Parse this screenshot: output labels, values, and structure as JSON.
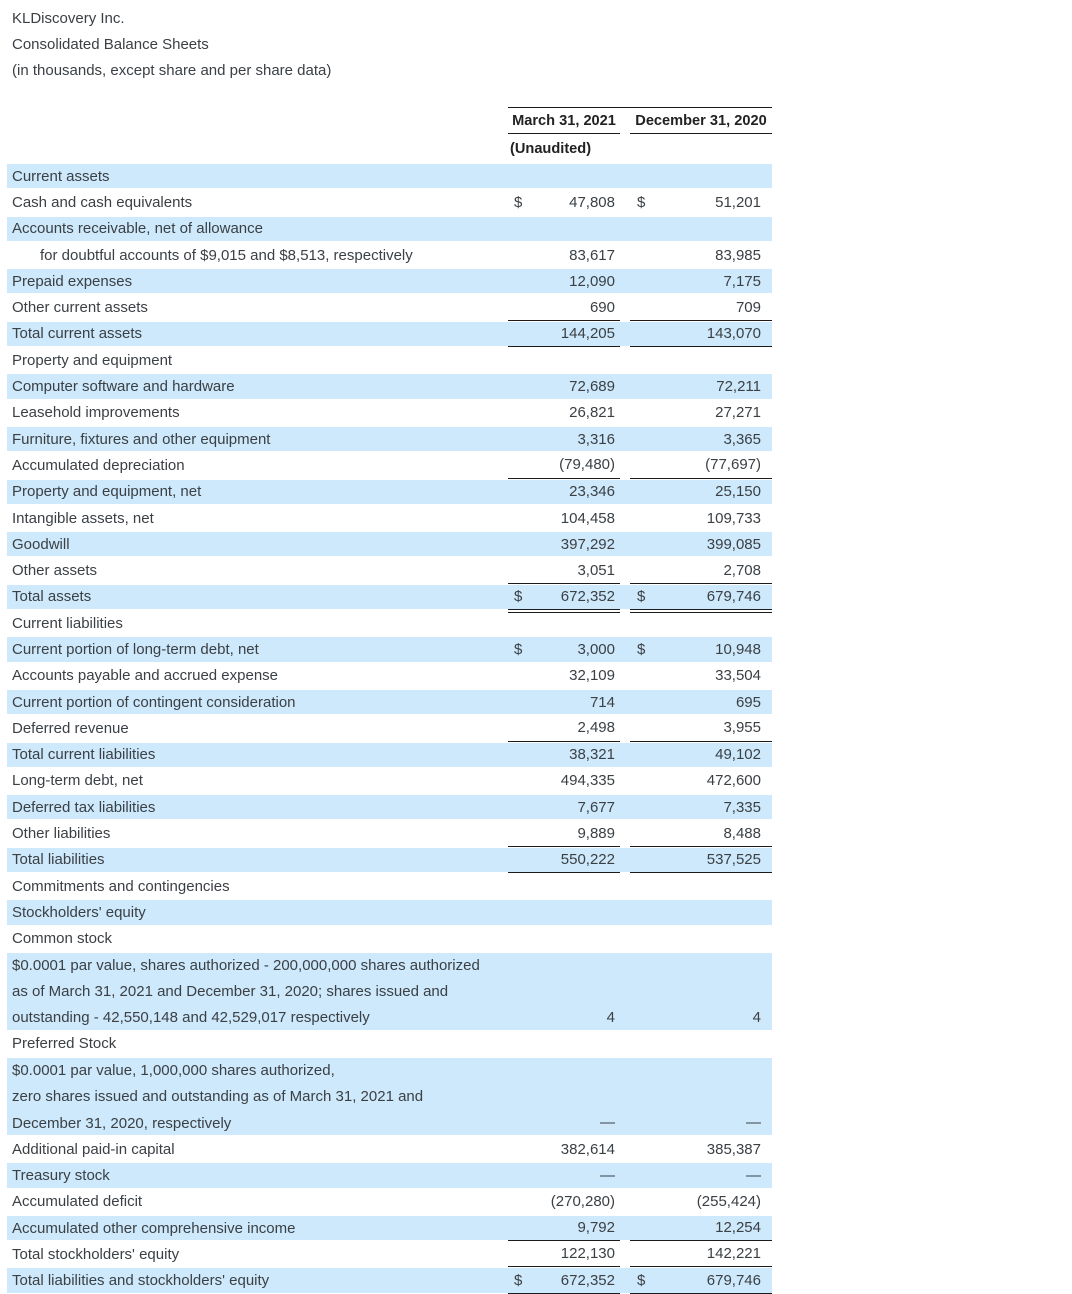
{
  "document": {
    "title": "KLDiscovery Inc.",
    "subtitle": "Consolidated Balance Sheets",
    "note": "(in thousands, except share and per share data)"
  },
  "colors": {
    "row_highlight": "#cde9fb",
    "text": "#3b4045",
    "rule": "#1b1b1b"
  },
  "table": {
    "currency_symbol": "$",
    "columns": [
      {
        "label": "March 31, 2021",
        "sublabel": "(Unaudited)"
      },
      {
        "label": "December 31, 2020",
        "sublabel": ""
      }
    ],
    "rows": [
      {
        "label": "Current assets",
        "shaded": true,
        "values": [
          "",
          ""
        ]
      },
      {
        "label": "Cash and cash equivalents",
        "dollar": true,
        "values": [
          "47,808",
          "51,201"
        ]
      },
      {
        "label": "Accounts receivable, net of allowance",
        "shaded": true,
        "values": [
          "",
          ""
        ]
      },
      {
        "label": "for doubtful accounts of $9,015 and $8,513, respectively",
        "indent": true,
        "values": [
          "83,617",
          "83,985"
        ]
      },
      {
        "label": "Prepaid expenses",
        "shaded": true,
        "values": [
          "12,090",
          "7,175"
        ]
      },
      {
        "label": "Other current assets",
        "values": [
          "690",
          "709"
        ],
        "rule": "single"
      },
      {
        "label": "Total current assets",
        "shaded": true,
        "values": [
          "144,205",
          "143,070"
        ],
        "rule": "single"
      },
      {
        "label": "Property and equipment",
        "values": [
          "",
          ""
        ]
      },
      {
        "label": "Computer software and hardware",
        "shaded": true,
        "values": [
          "72,689",
          "72,211"
        ]
      },
      {
        "label": "Leasehold improvements",
        "values": [
          "26,821",
          "27,271"
        ]
      },
      {
        "label": "Furniture, fixtures and other equipment",
        "shaded": true,
        "values": [
          "3,316",
          "3,365"
        ]
      },
      {
        "label": "Accumulated depreciation",
        "values": [
          "(79,480)",
          "(77,697)"
        ],
        "rule": "single"
      },
      {
        "label": "Property and equipment, net",
        "shaded": true,
        "values": [
          "23,346",
          "25,150"
        ]
      },
      {
        "label": "Intangible assets, net",
        "values": [
          "104,458",
          "109,733"
        ]
      },
      {
        "label": "Goodwill",
        "shaded": true,
        "values": [
          "397,292",
          "399,085"
        ]
      },
      {
        "label": "Other assets",
        "values": [
          "3,051",
          "2,708"
        ],
        "rule": "single"
      },
      {
        "label": "Total assets",
        "shaded": true,
        "dollar": true,
        "values": [
          "672,352",
          "679,746"
        ],
        "rule": "double"
      },
      {
        "label": "Current liabilities",
        "values": [
          "",
          ""
        ]
      },
      {
        "label": "Current portion of long-term debt, net",
        "shaded": true,
        "dollar": true,
        "values": [
          "3,000",
          "10,948"
        ]
      },
      {
        "label": "Accounts payable and accrued expense",
        "values": [
          "32,109",
          "33,504"
        ]
      },
      {
        "label": "Current portion of contingent consideration",
        "shaded": true,
        "values": [
          "714",
          "695"
        ]
      },
      {
        "label": "Deferred revenue",
        "values": [
          "2,498",
          "3,955"
        ],
        "rule": "single"
      },
      {
        "label": "Total current liabilities",
        "shaded": true,
        "values": [
          "38,321",
          "49,102"
        ]
      },
      {
        "label": "Long-term debt, net",
        "values": [
          "494,335",
          "472,600"
        ]
      },
      {
        "label": "Deferred tax liabilities",
        "shaded": true,
        "values": [
          "7,677",
          "7,335"
        ]
      },
      {
        "label": "Other liabilities",
        "values": [
          "9,889",
          "8,488"
        ],
        "rule": "single"
      },
      {
        "label": "Total liabilities",
        "shaded": true,
        "values": [
          "550,222",
          "537,525"
        ],
        "rule": "single"
      },
      {
        "label": "Commitments and contingencies",
        "values": [
          "",
          ""
        ]
      },
      {
        "label": "Stockholders' equity",
        "shaded": true,
        "values": [
          "",
          ""
        ]
      },
      {
        "label": "Common stock",
        "values": [
          "",
          ""
        ]
      },
      {
        "lines": [
          "$0.0001 par value, shares authorized - 200,000,000 shares authorized",
          "as of March 31, 2021 and December 31, 2020; shares issued and",
          "outstanding - 42,550,148 and 42,529,017 respectively"
        ],
        "shaded": true,
        "values": [
          "4",
          "4"
        ]
      },
      {
        "label": "Preferred Stock",
        "values": [
          "",
          ""
        ]
      },
      {
        "lines": [
          "$0.0001 par value, 1,000,000 shares authorized,",
          "zero shares issued and outstanding as of March 31, 2021 and",
          "December 31, 2020, respectively"
        ],
        "shaded": true,
        "values": [
          "—",
          "—"
        ]
      },
      {
        "label": "Additional paid-in capital",
        "values": [
          "382,614",
          "385,387"
        ]
      },
      {
        "label": "Treasury stock",
        "shaded": true,
        "values": [
          "—",
          "—"
        ]
      },
      {
        "label": "Accumulated deficit",
        "values": [
          "(270,280)",
          "(255,424)"
        ]
      },
      {
        "label": "Accumulated other comprehensive income",
        "shaded": true,
        "values": [
          "9,792",
          "12,254"
        ],
        "rule": "single"
      },
      {
        "label": "Total stockholders' equity",
        "values": [
          "122,130",
          "142,221"
        ],
        "rule": "single"
      },
      {
        "label": "Total liabilities and stockholders' equity",
        "shaded": true,
        "dollar": true,
        "values": [
          "672,352",
          "679,746"
        ],
        "rule": "double"
      }
    ]
  }
}
